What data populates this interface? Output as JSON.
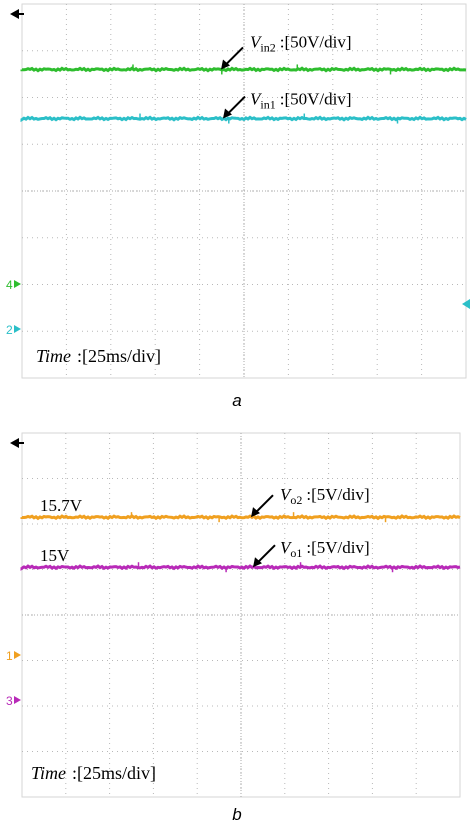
{
  "chart_data": [
    {
      "type": "line",
      "panel_label": "a",
      "time_label_italic": "Time",
      "time_label_rest": ":[25ms/div]",
      "divisions": {
        "x": 10,
        "y": 8
      },
      "y_range_div": [
        0,
        8
      ],
      "grid": true,
      "series": [
        {
          "name_main": "V",
          "name_sub": "in2",
          "scale": ":[50V/div]",
          "color": "#2ebd2e",
          "level_div": 6.6,
          "channel_marker": "4"
        },
        {
          "name_main": "V",
          "name_sub": "in1",
          "scale": ":[50V/div]",
          "color": "#2bbfc8",
          "level_div": 5.55,
          "channel_marker": "2"
        }
      ]
    },
    {
      "type": "line",
      "panel_label": "b",
      "time_label_italic": "Time",
      "time_label_rest": ":[25ms/div]",
      "divisions": {
        "x": 10,
        "y": 8
      },
      "y_range_div": [
        0,
        8
      ],
      "grid": true,
      "series": [
        {
          "name_main": "V",
          "name_sub": "o2",
          "scale": ":[5V/div]",
          "color": "#f0a020",
          "level_div": 6.15,
          "value_label": "15.7V",
          "channel_marker": "1"
        },
        {
          "name_main": "V",
          "name_sub": "o1",
          "scale": ":[5V/div]",
          "color": "#b82ab8",
          "level_div": 5.05,
          "value_label": "15V",
          "channel_marker": "3"
        }
      ]
    }
  ]
}
